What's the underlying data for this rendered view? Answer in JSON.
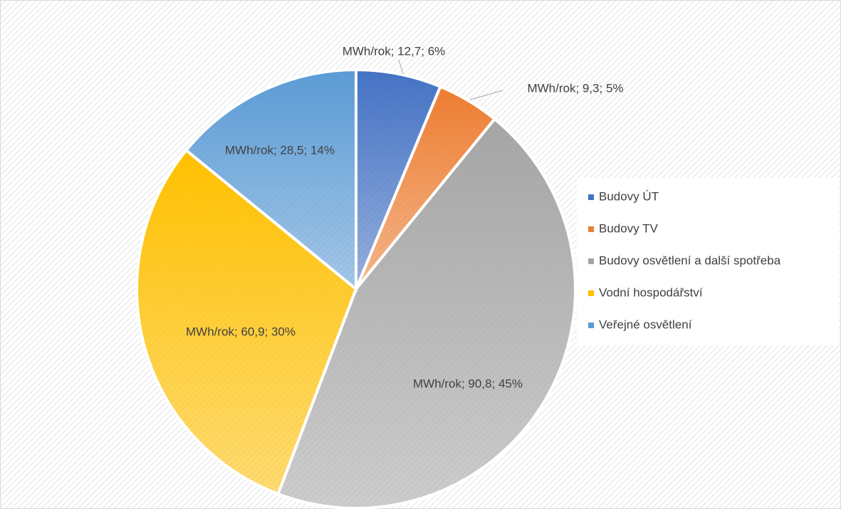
{
  "chart_data": {
    "type": "pie",
    "categories": [
      "Budovy ÚT",
      "Budovy TV",
      "Budovy osvětlení a další spotřeba",
      "Vodní hospodářství",
      "Veřejné osvětlení"
    ],
    "values": [
      12.7,
      9.3,
      90.8,
      60.9,
      28.5
    ],
    "value_labels": [
      "MWh/rok;  12,7; 6%",
      "MWh/rok;  9,3; 5%",
      "MWh/rok;  90,8; 45%",
      "MWh/rok;  60,9; 30%",
      "MWh/rok;  28,5; 14%"
    ],
    "colors": [
      "#4472c4",
      "#ed7d31",
      "#a5a5a5",
      "#ffc000",
      "#5b9bd5"
    ],
    "legend": "right"
  }
}
